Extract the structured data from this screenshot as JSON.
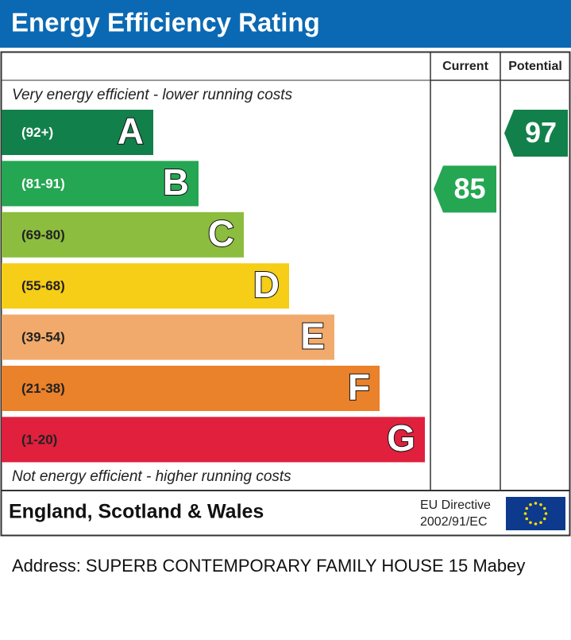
{
  "chart_data": {
    "type": "epc",
    "title": "Energy Efficiency Rating",
    "column_headers": [
      "Current",
      "Potential"
    ],
    "top_note": "Very energy efficient - lower running costs",
    "bottom_note": "Not energy efficient - higher running costs",
    "bands": [
      {
        "range": "(92+)",
        "letter": "A",
        "color": "#12804a",
        "label_color": "#ffffff"
      },
      {
        "range": "(81-91)",
        "letter": "B",
        "color": "#25a652",
        "label_color": "#ffffff"
      },
      {
        "range": "(69-80)",
        "letter": "C",
        "color": "#8cbd3f",
        "label_color": "#222222"
      },
      {
        "range": "(55-68)",
        "letter": "D",
        "color": "#f6cd17",
        "label_color": "#222222"
      },
      {
        "range": "(39-54)",
        "letter": "E",
        "color": "#f1aa6b",
        "label_color": "#222222"
      },
      {
        "range": "(21-38)",
        "letter": "F",
        "color": "#ea812b",
        "label_color": "#222222"
      },
      {
        "range": "(1-20)",
        "letter": "G",
        "color": "#e0203c",
        "label_color": "#222222"
      }
    ],
    "current": 85,
    "potential": 97,
    "region": "England, Scotland & Wales",
    "directive": [
      "EU Directive",
      "2002/91/EC"
    ]
  },
  "address": "Address: SUPERB CONTEMPORARY FAMILY HOUSE 15 Mabey"
}
